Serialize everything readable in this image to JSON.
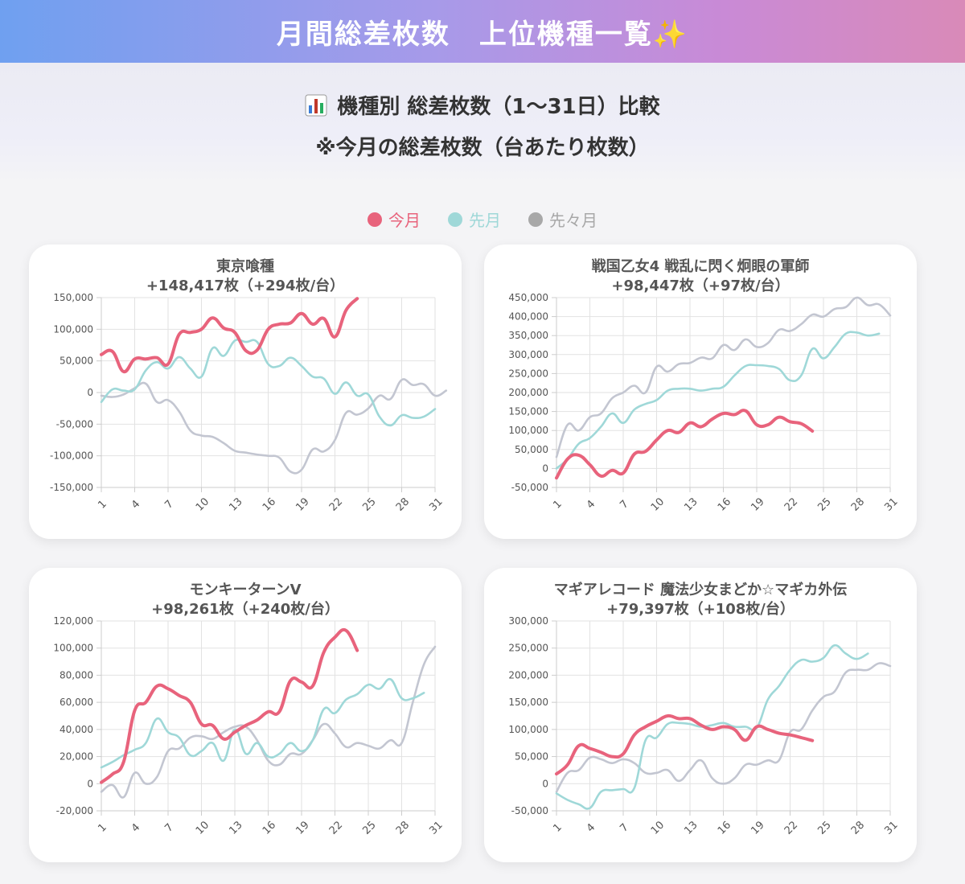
{
  "header": {
    "title": "月間総差枚数　上位機種一覧",
    "title_emoji": "✨"
  },
  "subtitle": {
    "line1": "機種別 総差枚数（1〜31日）比較",
    "line2": "※今月の総差枚数（台あたり枚数）",
    "icon": "bar-chart-icon"
  },
  "legend": [
    {
      "name": "今月",
      "color": "#e8637c"
    },
    {
      "name": "先月",
      "color": "#9fd8d8"
    },
    {
      "name": "先々月",
      "color": "#a8a8a8"
    }
  ],
  "colors": {
    "this_month": "#e8637c",
    "last_month": "#9fd8d8",
    "two_months_ago": "#c3c6d1"
  },
  "chart_data": [
    {
      "type": "line",
      "title": "東京喰種",
      "subtitle": "+148,417枚（+294枚/台）",
      "ylim": [
        -150000,
        150000
      ],
      "yticks": [
        150000,
        100000,
        50000,
        0,
        -50000,
        -100000,
        -150000
      ],
      "ytick_labels": [
        "150,000",
        "100,000",
        "50,000",
        "0",
        "-50,000",
        "-100,000",
        "-150,000"
      ],
      "x_labels": [
        "1",
        "4",
        "7",
        "10",
        "13",
        "16",
        "19",
        "22",
        "25",
        "28",
        "31"
      ],
      "grid": true,
      "series": [
        {
          "name": "先々月",
          "values": [
            -5000,
            -7000,
            -3000,
            7000,
            14000,
            -15000,
            -12000,
            -30000,
            -60000,
            -68000,
            -70000,
            -80000,
            -92000,
            -95000,
            -98000,
            -100000,
            -103000,
            -125000,
            -122000,
            -90000,
            -93000,
            -75000,
            -32000,
            -35000,
            -25000,
            -5000,
            -10000,
            20000,
            12000,
            13000,
            -5000,
            3000
          ]
        },
        {
          "name": "先月",
          "values": [
            -15000,
            5000,
            3000,
            5000,
            35000,
            48000,
            38000,
            56000,
            38000,
            25000,
            70000,
            58000,
            82000,
            80000,
            80000,
            45000,
            42000,
            55000,
            42000,
            25000,
            22000,
            -2000,
            16000,
            -5000,
            -3000,
            -38000,
            -52000,
            -36000,
            -40000,
            -38000,
            -26000
          ]
        },
        {
          "name": "今月",
          "values": [
            60000,
            65000,
            33000,
            53000,
            53000,
            55000,
            45000,
            92000,
            95000,
            100000,
            118000,
            102000,
            95000,
            66000,
            67000,
            100000,
            108000,
            110000,
            125000,
            108000,
            117000,
            88000,
            130000,
            148417
          ]
        }
      ]
    },
    {
      "type": "line",
      "title": "戦国乙女4 戦乱に閃く炯眼の軍師",
      "subtitle": "+98,447枚（+97枚/台）",
      "ylim": [
        -50000,
        450000
      ],
      "yticks": [
        450000,
        400000,
        350000,
        300000,
        250000,
        200000,
        150000,
        100000,
        50000,
        0,
        -50000
      ],
      "ytick_labels": [
        "450,000",
        "400,000",
        "350,000",
        "300,000",
        "250,000",
        "200,000",
        "150,000",
        "100,000",
        "50,000",
        "0",
        "-50,000"
      ],
      "x_labels": [
        "1",
        "4",
        "7",
        "10",
        "13",
        "16",
        "19",
        "22",
        "25",
        "28",
        "31"
      ],
      "grid": true,
      "series": [
        {
          "name": "先々月",
          "values": [
            30000,
            115000,
            100000,
            135000,
            145000,
            185000,
            200000,
            218000,
            200000,
            268000,
            255000,
            275000,
            278000,
            292000,
            290000,
            325000,
            312000,
            340000,
            320000,
            330000,
            365000,
            362000,
            380000,
            405000,
            400000,
            420000,
            425000,
            450000,
            430000,
            432000,
            403000
          ]
        },
        {
          "name": "先月",
          "values": [
            0,
            25000,
            65000,
            80000,
            110000,
            145000,
            120000,
            155000,
            170000,
            180000,
            205000,
            210000,
            210000,
            205000,
            210000,
            215000,
            245000,
            270000,
            272000,
            270000,
            262000,
            232000,
            245000,
            315000,
            290000,
            320000,
            355000,
            358000,
            350000,
            355000
          ]
        },
        {
          "name": "今月",
          "values": [
            -25000,
            25000,
            35000,
            10000,
            -20000,
            -5000,
            -12000,
            38000,
            45000,
            75000,
            100000,
            95000,
            120000,
            110000,
            130000,
            145000,
            142000,
            152000,
            115000,
            115000,
            135000,
            123000,
            118000,
            98447
          ]
        }
      ]
    },
    {
      "type": "line",
      "title": "モンキーターンV",
      "subtitle": "+98,261枚（+240枚/台）",
      "ylim": [
        -20000,
        120000
      ],
      "yticks": [
        120000,
        100000,
        80000,
        60000,
        40000,
        20000,
        0,
        -20000
      ],
      "ytick_labels": [
        "120,000",
        "100,000",
        "80,000",
        "60,000",
        "40,000",
        "20,000",
        "0",
        "-20,000"
      ],
      "x_labels": [
        "1",
        "4",
        "7",
        "10",
        "13",
        "16",
        "19",
        "22",
        "25",
        "28",
        "31"
      ],
      "grid": true,
      "series": [
        {
          "name": "先々月",
          "values": [
            -6000,
            -1000,
            -10000,
            8000,
            0,
            5000,
            24000,
            26000,
            34000,
            35000,
            33000,
            38000,
            42000,
            42000,
            32000,
            17000,
            14000,
            22000,
            22000,
            32000,
            44000,
            37000,
            27000,
            30000,
            28000,
            26000,
            32000,
            30000,
            60000,
            88000,
            101000
          ]
        },
        {
          "name": "先月",
          "values": [
            12000,
            16000,
            21000,
            25000,
            30000,
            48000,
            38000,
            34000,
            21000,
            24000,
            30000,
            17000,
            40000,
            22000,
            30000,
            20000,
            22000,
            30000,
            24000,
            32000,
            55000,
            52000,
            62000,
            66000,
            73000,
            70000,
            77000,
            63000,
            63000,
            67000
          ]
        },
        {
          "name": "今月",
          "values": [
            1000,
            7000,
            16000,
            54000,
            60000,
            72000,
            70000,
            65000,
            60000,
            44000,
            43000,
            33000,
            38000,
            43000,
            47000,
            53000,
            53000,
            76000,
            75000,
            72000,
            97000,
            108000,
            113000,
            98261
          ]
        }
      ]
    },
    {
      "type": "line",
      "title": "マギアレコード 魔法少女まどか☆マギカ外伝",
      "subtitle": "+79,397枚（+108枚/台）",
      "ylim": [
        -50000,
        300000
      ],
      "yticks": [
        300000,
        250000,
        200000,
        150000,
        100000,
        50000,
        0,
        -50000
      ],
      "ytick_labels": [
        "300,000",
        "250,000",
        "200,000",
        "150,000",
        "100,000",
        "50,000",
        "0",
        "-50,000"
      ],
      "x_labels": [
        "1",
        "4",
        "7",
        "10",
        "13",
        "16",
        "19",
        "22",
        "25",
        "28",
        "31"
      ],
      "grid": true,
      "series": [
        {
          "name": "先々月",
          "values": [
            -15000,
            20000,
            25000,
            48000,
            45000,
            38000,
            45000,
            38000,
            20000,
            20000,
            25000,
            5000,
            25000,
            43000,
            10000,
            0,
            10000,
            35000,
            35000,
            43000,
            43000,
            95000,
            100000,
            135000,
            160000,
            170000,
            205000,
            210000,
            210000,
            222000,
            217000
          ]
        },
        {
          "name": "先月",
          "values": [
            -18000,
            -30000,
            -38000,
            -45000,
            -15000,
            -12000,
            -10000,
            -8000,
            80000,
            85000,
            110000,
            112000,
            110000,
            105000,
            108000,
            112000,
            105000,
            105000,
            103000,
            155000,
            180000,
            210000,
            228000,
            225000,
            232000,
            255000,
            240000,
            230000,
            240000
          ]
        },
        {
          "name": "今月",
          "values": [
            18000,
            35000,
            70000,
            65000,
            58000,
            50000,
            55000,
            90000,
            105000,
            115000,
            125000,
            120000,
            120000,
            108000,
            100000,
            105000,
            100000,
            80000,
            105000,
            100000,
            93000,
            90000,
            85000,
            79397
          ]
        }
      ]
    }
  ]
}
